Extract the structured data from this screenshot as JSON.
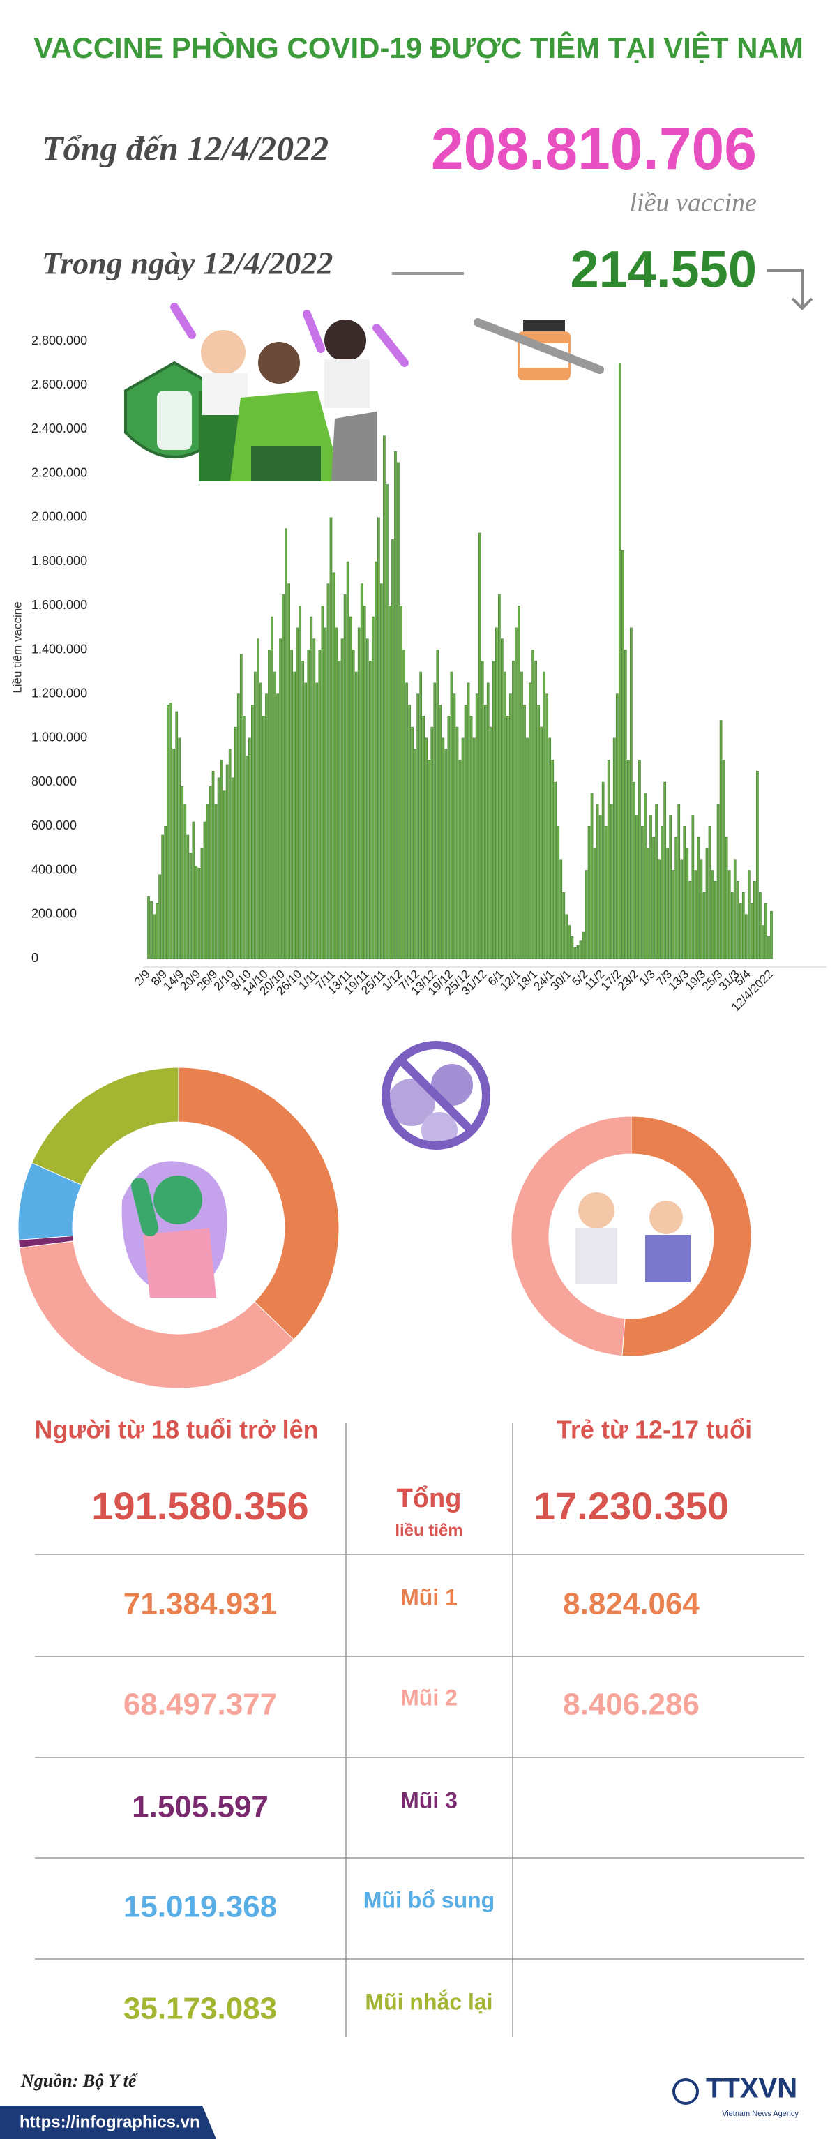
{
  "header": {
    "title": "VACCINE PHÒNG COVID-19 ĐƯỢC TIÊM TẠI VIỆT NAM",
    "cumulative_label": "Tổng đến 12/4/2022",
    "cumulative": "208.810.706",
    "unit": "liều vaccine",
    "daily_label": "Trong ngày 12/4/2022",
    "daily": "214.550"
  },
  "chart_data": [
    {
      "type": "bar",
      "ylabel": "Liều tiêm vaccine",
      "color": "#6aaa4a",
      "grid": false,
      "ylim": [
        0,
        2800000
      ],
      "yticks": [
        0,
        {
          "value": 200000,
          "label": "200.000"
        },
        {
          "value": 400000,
          "label": "400.000"
        },
        {
          "value": 600000,
          "label": "600.000"
        },
        {
          "value": 800000,
          "label": "800.000"
        },
        {
          "value": 1000000,
          "label": "1.000.000"
        },
        {
          "value": 1200000,
          "label": "1.200.000"
        },
        {
          "value": 1400000,
          "label": "1.400.000"
        },
        {
          "value": 1600000,
          "label": "1.600.000"
        },
        {
          "value": 1800000,
          "label": "1.800.000"
        },
        {
          "value": 2000000,
          "label": "2.000.000"
        },
        {
          "value": 2200000,
          "label": "2.200.000"
        },
        {
          "value": 2400000,
          "label": "2.400.000"
        },
        {
          "value": 2600000,
          "label": "2.600.000"
        },
        {
          "value": 2800000,
          "label": "2.800.000"
        }
      ],
      "categories": [
        "2/9",
        null,
        null,
        null,
        null,
        null,
        "8/9",
        null,
        null,
        null,
        null,
        null,
        "14/9",
        null,
        null,
        null,
        null,
        null,
        "20/9",
        null,
        null,
        null,
        null,
        null,
        "26/9",
        null,
        null,
        null,
        null,
        null,
        "2/10",
        null,
        null,
        null,
        null,
        null,
        "8/10",
        null,
        null,
        null,
        null,
        null,
        "14/10",
        null,
        null,
        null,
        null,
        null,
        "20/10",
        null,
        null,
        null,
        null,
        null,
        "26/10",
        null,
        null,
        null,
        null,
        null,
        "1/11",
        null,
        null,
        null,
        null,
        null,
        "7/11",
        null,
        null,
        null,
        null,
        null,
        "13/11",
        null,
        null,
        null,
        null,
        null,
        "19/11",
        null,
        null,
        null,
        null,
        null,
        "25/11",
        null,
        null,
        null,
        null,
        null,
        "1/12",
        null,
        null,
        null,
        null,
        null,
        "7/12",
        null,
        null,
        null,
        null,
        null,
        "13/12",
        null,
        null,
        null,
        null,
        null,
        "19/12",
        null,
        null,
        null,
        null,
        null,
        "25/12",
        null,
        null,
        null,
        null,
        null,
        "31/12",
        null,
        null,
        null,
        null,
        null,
        "6/1",
        null,
        null,
        null,
        null,
        null,
        "12/1",
        null,
        null,
        null,
        null,
        null,
        "18/1",
        null,
        null,
        null,
        null,
        null,
        "24/1",
        null,
        null,
        null,
        null,
        null,
        "30/1",
        null,
        null,
        null,
        null,
        null,
        "5/2",
        null,
        null,
        null,
        null,
        null,
        "11/2",
        null,
        null,
        null,
        null,
        null,
        "17/2",
        null,
        null,
        null,
        null,
        null,
        "23/2",
        null,
        null,
        null,
        null,
        null,
        "1/3",
        null,
        null,
        null,
        null,
        null,
        "7/3",
        null,
        null,
        null,
        null,
        null,
        "13/3",
        null,
        null,
        null,
        null,
        null,
        "19/3",
        null,
        null,
        null,
        null,
        null,
        "25/3",
        null,
        null,
        null,
        null,
        null,
        "31/3",
        null,
        null,
        null,
        "5/4",
        null,
        null,
        null,
        null,
        null,
        null,
        null,
        "12/4/2022"
      ],
      "values": [
        280000,
        260000,
        200000,
        250000,
        380000,
        560000,
        600000,
        1150000,
        1160000,
        950000,
        1120000,
        1000000,
        780000,
        700000,
        560000,
        480000,
        620000,
        420000,
        410000,
        500000,
        620000,
        700000,
        780000,
        850000,
        700000,
        820000,
        900000,
        760000,
        880000,
        950000,
        820000,
        1050000,
        1200000,
        1380000,
        1100000,
        920000,
        1000000,
        1150000,
        1300000,
        1450000,
        1250000,
        1100000,
        1200000,
        1400000,
        1550000,
        1300000,
        1200000,
        1450000,
        1650000,
        1950000,
        1700000,
        1400000,
        1300000,
        1500000,
        1600000,
        1350000,
        1250000,
        1400000,
        1550000,
        1450000,
        1250000,
        1400000,
        1600000,
        1500000,
        1700000,
        2000000,
        1750000,
        1500000,
        1350000,
        1450000,
        1650000,
        1800000,
        1550000,
        1400000,
        1300000,
        1500000,
        1700000,
        1600000,
        1450000,
        1350000,
        1550000,
        1800000,
        2000000,
        1700000,
        2370000,
        2150000,
        1600000,
        1900000,
        2300000,
        2250000,
        1600000,
        1400000,
        1250000,
        1150000,
        1050000,
        950000,
        1200000,
        1300000,
        1100000,
        1000000,
        900000,
        1050000,
        1250000,
        1400000,
        1150000,
        1000000,
        950000,
        1100000,
        1300000,
        1200000,
        1050000,
        900000,
        1000000,
        1150000,
        1250000,
        1100000,
        1000000,
        1200000,
        1930000,
        1350000,
        1150000,
        1250000,
        1050000,
        1350000,
        1500000,
        1650000,
        1450000,
        1300000,
        1100000,
        1200000,
        1350000,
        1500000,
        1600000,
        1300000,
        1150000,
        1000000,
        1250000,
        1400000,
        1350000,
        1150000,
        1050000,
        1300000,
        1200000,
        1000000,
        900000,
        800000,
        600000,
        450000,
        300000,
        200000,
        150000,
        100000,
        50000,
        60000,
        80000,
        120000,
        400000,
        600000,
        750000,
        500000,
        700000,
        650000,
        800000,
        600000,
        900000,
        700000,
        1000000,
        1200000,
        2700000,
        1850000,
        1400000,
        900000,
        1500000,
        800000,
        650000,
        900000,
        600000,
        750000,
        500000,
        650000,
        550000,
        700000,
        450000,
        600000,
        800000,
        500000,
        650000,
        400000,
        550000,
        700000,
        450000,
        600000,
        500000,
        350000,
        650000,
        400000,
        550000,
        450000,
        300000,
        500000,
        600000,
        400000,
        350000,
        700000,
        1080000,
        900000,
        550000,
        400000,
        300000,
        450000,
        350000,
        250000,
        300000,
        200000,
        400000,
        250000,
        350000,
        850000,
        300000,
        150000,
        250000,
        100000,
        214550
      ]
    },
    {
      "type": "donut",
      "title": "Người từ 18 tuổi trở lên",
      "total": "191.580.356",
      "categories": [
        "Mũi 1",
        "Mũi 2",
        "Mũi 3",
        "Mũi bổ sung",
        "Mũi nhắc lại"
      ],
      "values": [
        71384931,
        68497377,
        1505597,
        15019368,
        35173083
      ],
      "value_labels": [
        "71.384.931",
        "68.497.377",
        "1.505.597",
        "15.019.368",
        "35.173.083"
      ],
      "colors": [
        "#e8804f",
        "#f7a59b",
        "#7a2a6e",
        "#5aaee6",
        "#a3b531"
      ]
    },
    {
      "type": "donut",
      "title": "Trẻ từ 12-17 tuổi",
      "total": "17.230.350",
      "values": [
        8824064,
        8406286
      ],
      "value_labels": [
        "8.824.064",
        "8.406.286"
      ],
      "colors": [
        "#e8804f",
        "#f7a59b"
      ]
    }
  ],
  "table": {
    "total_label": "Tổng",
    "total_sub": "liều tiêm"
  },
  "footer": {
    "source": "Nguồn: Bộ Y tế",
    "url": "https://infographics.vn",
    "logo": "TTXVN",
    "agency": "Vietnam News Agency"
  }
}
